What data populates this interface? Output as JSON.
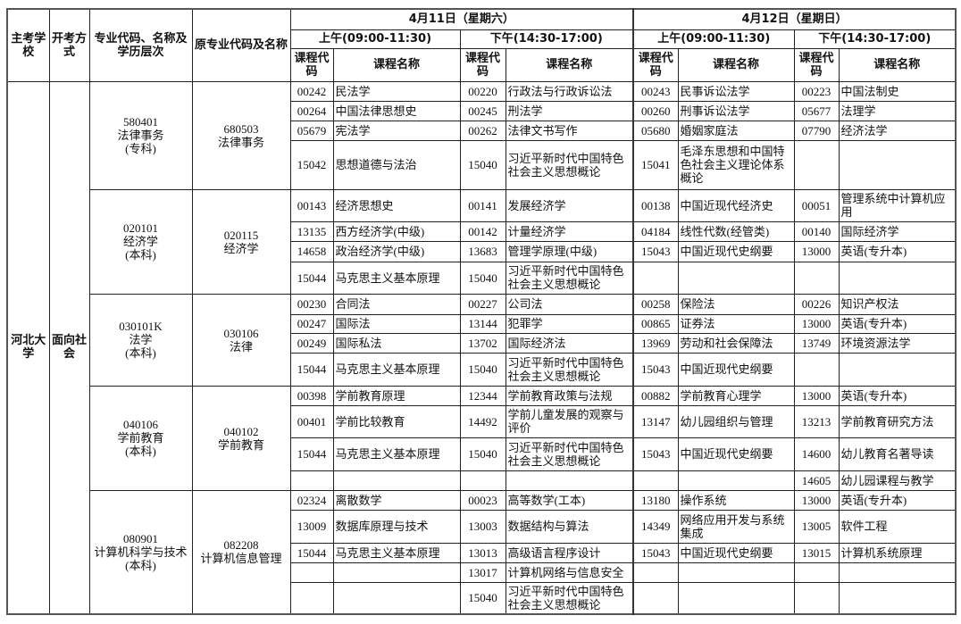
{
  "header": {
    "school": "主考学校",
    "mode": "开考方式",
    "major": "专业代码、名称及学历层次",
    "orig_major": "原专业代码及名称",
    "dates": [
      "4月11日（星期六）",
      "4月12日（星期日）"
    ],
    "sessions": [
      "上午(09:00-11:30)",
      "下午(14:30-17:00)",
      "上午(09:00-11:30)",
      "下午(14:30-17:00)"
    ],
    "code_label": "课程代码",
    "name_label": "课程名称"
  },
  "school": "河北大学",
  "mode": "面向社会",
  "groups": [
    {
      "major": [
        "580401",
        "法律事务",
        "(专科)"
      ],
      "orig": [
        "680503",
        "法律事务"
      ],
      "rows": [
        [
          [
            "00242",
            "民法学"
          ],
          [
            "00220",
            "行政法与行政诉讼法"
          ],
          [
            "00243",
            "民事诉讼法学"
          ],
          [
            "00223",
            "中国法制史"
          ]
        ],
        [
          [
            "00264",
            "中国法律思想史"
          ],
          [
            "00245",
            "刑法学"
          ],
          [
            "00260",
            "刑事诉讼法学"
          ],
          [
            "05677",
            "法理学"
          ]
        ],
        [
          [
            "05679",
            "宪法学"
          ],
          [
            "00262",
            "法律文书写作"
          ],
          [
            "05680",
            "婚姻家庭法"
          ],
          [
            "07790",
            "经济法学"
          ]
        ],
        [
          [
            "15042",
            "思想道德与法治"
          ],
          [
            "15040",
            "习近平新时代中国特色社会主义思想概论"
          ],
          [
            "15041",
            "毛泽东思想和中国特色社会主义理论体系概论"
          ],
          [
            "",
            ""
          ]
        ]
      ]
    },
    {
      "major": [
        "020101",
        "经济学",
        "(本科)"
      ],
      "orig": [
        "020115",
        "经济学"
      ],
      "rows": [
        [
          [
            "00143",
            "经济思想史"
          ],
          [
            "00141",
            "发展经济学"
          ],
          [
            "00138",
            "中国近现代经济史"
          ],
          [
            "00051",
            "管理系统中计算机应用"
          ]
        ],
        [
          [
            "13135",
            "西方经济学(中级)"
          ],
          [
            "00142",
            "计量经济学"
          ],
          [
            "04184",
            "线性代数(经管类)"
          ],
          [
            "00140",
            "国际经济学"
          ]
        ],
        [
          [
            "14658",
            "政治经济学(中级)"
          ],
          [
            "13683",
            "管理学原理(中级)"
          ],
          [
            "15043",
            "中国近现代史纲要"
          ],
          [
            "13000",
            "英语(专升本)"
          ]
        ],
        [
          [
            "15044",
            "马克思主义基本原理"
          ],
          [
            "15040",
            "习近平新时代中国特色社会主义思想概论"
          ],
          [
            "",
            ""
          ],
          [
            "",
            ""
          ]
        ]
      ]
    },
    {
      "major": [
        "030101K",
        "法学",
        "(本科)"
      ],
      "orig": [
        "030106",
        "法律"
      ],
      "rows": [
        [
          [
            "00230",
            "合同法"
          ],
          [
            "00227",
            "公司法"
          ],
          [
            "00258",
            "保险法"
          ],
          [
            "00226",
            "知识产权法"
          ]
        ],
        [
          [
            "00247",
            "国际法"
          ],
          [
            "13144",
            "犯罪学"
          ],
          [
            "00865",
            "证券法"
          ],
          [
            "13000",
            "英语(专升本)"
          ]
        ],
        [
          [
            "00249",
            "国际私法"
          ],
          [
            "13702",
            "国际经济法"
          ],
          [
            "13969",
            "劳动和社会保障法"
          ],
          [
            "13749",
            "环境资源法学"
          ]
        ],
        [
          [
            "15044",
            "马克思主义基本原理"
          ],
          [
            "15040",
            "习近平新时代中国特色社会主义思想概论"
          ],
          [
            "15043",
            "中国近现代史纲要"
          ],
          [
            "",
            ""
          ]
        ]
      ]
    },
    {
      "major": [
        "040106",
        "学前教育",
        "(本科)"
      ],
      "orig": [
        "040102",
        "学前教育"
      ],
      "rows": [
        [
          [
            "00398",
            "学前教育原理"
          ],
          [
            "12344",
            "学前教育政策与法规"
          ],
          [
            "00882",
            "学前教育心理学"
          ],
          [
            "13000",
            "英语(专升本)"
          ]
        ],
        [
          [
            "00401",
            "学前比较教育"
          ],
          [
            "14492",
            "学前儿童发展的观察与评价"
          ],
          [
            "13147",
            "幼儿园组织与管理"
          ],
          [
            "13213",
            "学前教育研究方法"
          ]
        ],
        [
          [
            "15044",
            "马克思主义基本原理"
          ],
          [
            "15040",
            "习近平新时代中国特色社会主义思想概论"
          ],
          [
            "15043",
            "中国近现代史纲要"
          ],
          [
            "14600",
            "幼儿教育名著导读"
          ]
        ],
        [
          [
            "",
            ""
          ],
          [
            "",
            ""
          ],
          [
            "",
            ""
          ],
          [
            "14605",
            "幼儿园课程与教学"
          ]
        ]
      ]
    },
    {
      "major": [
        "080901",
        "计算机科学与技术",
        "(本科)"
      ],
      "orig": [
        "082208",
        "计算机信息管理"
      ],
      "rows": [
        [
          [
            "02324",
            "离散数学"
          ],
          [
            "00023",
            "高等数学(工本)"
          ],
          [
            "13180",
            "操作系统"
          ],
          [
            "13000",
            "英语(专升本)"
          ]
        ],
        [
          [
            "13009",
            "数据库原理与技术"
          ],
          [
            "13003",
            "数据结构与算法"
          ],
          [
            "14349",
            "网络应用开发与系统集成"
          ],
          [
            "13005",
            "软件工程"
          ]
        ],
        [
          [
            "15044",
            "马克思主义基本原理"
          ],
          [
            "13013",
            "高级语言程序设计"
          ],
          [
            "15043",
            "中国近现代史纲要"
          ],
          [
            "13015",
            "计算机系统原理"
          ]
        ],
        [
          [
            "",
            ""
          ],
          [
            "13017",
            "计算机网络与信息安全"
          ],
          [
            "",
            ""
          ],
          [
            "",
            ""
          ]
        ],
        [
          [
            "",
            ""
          ],
          [
            "15040",
            "习近平新时代中国特色社会主义思想概论"
          ],
          [
            "",
            ""
          ],
          [
            "",
            ""
          ]
        ]
      ]
    }
  ]
}
